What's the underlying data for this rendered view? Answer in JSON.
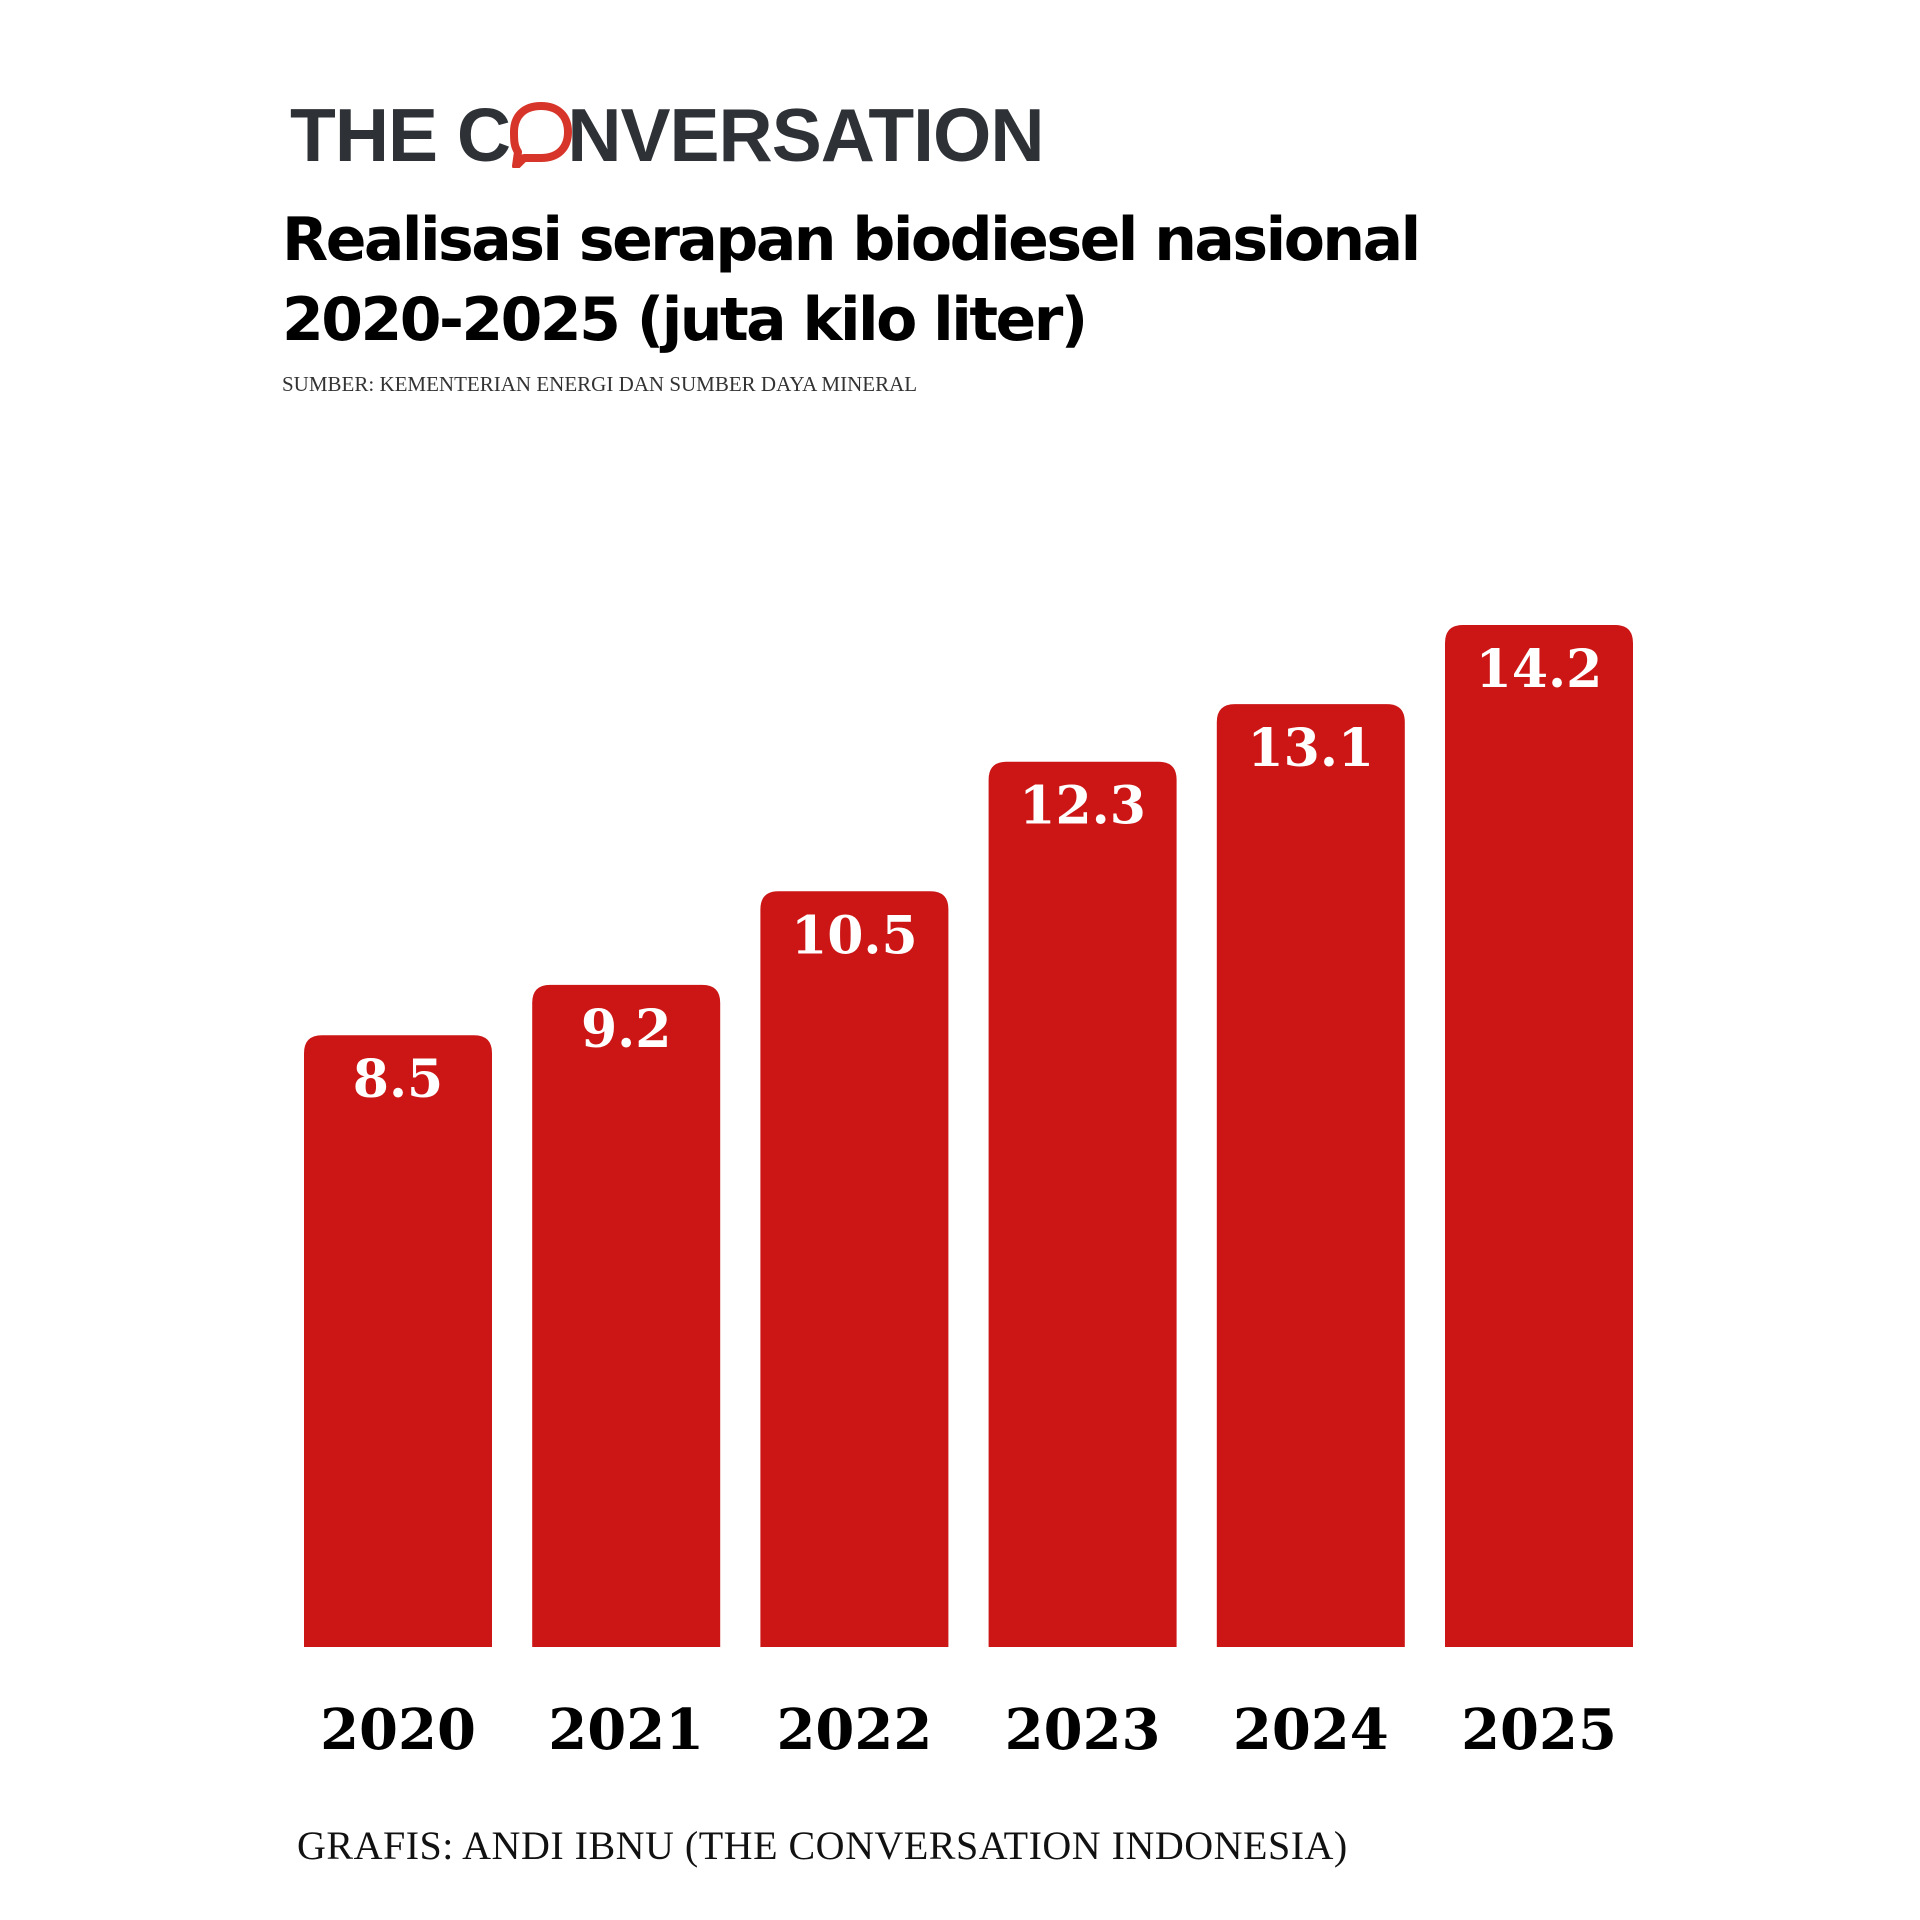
{
  "header": {
    "logo_text_before": "THE C",
    "logo_text_after": "NVERSATION",
    "logo_icon": "speech-bubble-o-icon",
    "brand_color": "#d8352a",
    "title": "Realisasi serapan biodiesel nasional 2020-2025 (juta kilo liter)",
    "source": "SUMBER: KEMENTERIAN ENERGI DAN SUMBER DAYA MINERAL"
  },
  "footer": {
    "credit": "GRAFIS: ANDI IBNU (THE CONVERSATION INDONESIA)"
  },
  "chart_data": {
    "type": "bar",
    "title": "Realisasi serapan biodiesel nasional 2020-2025 (juta kilo liter)",
    "xlabel": "",
    "ylabel": "",
    "categories": [
      "2020",
      "2021",
      "2022",
      "2023",
      "2024",
      "2025"
    ],
    "values": [
      8.5,
      9.2,
      10.5,
      12.3,
      13.1,
      14.2
    ],
    "data_labels": [
      "8.5",
      "9.2",
      "10.5",
      "12.3",
      "13.1",
      "14.2"
    ],
    "ylim": [
      0,
      14.2
    ],
    "grid": false,
    "legend": "none",
    "bar_color": "#cc1616",
    "label_color": "#ffffff"
  }
}
